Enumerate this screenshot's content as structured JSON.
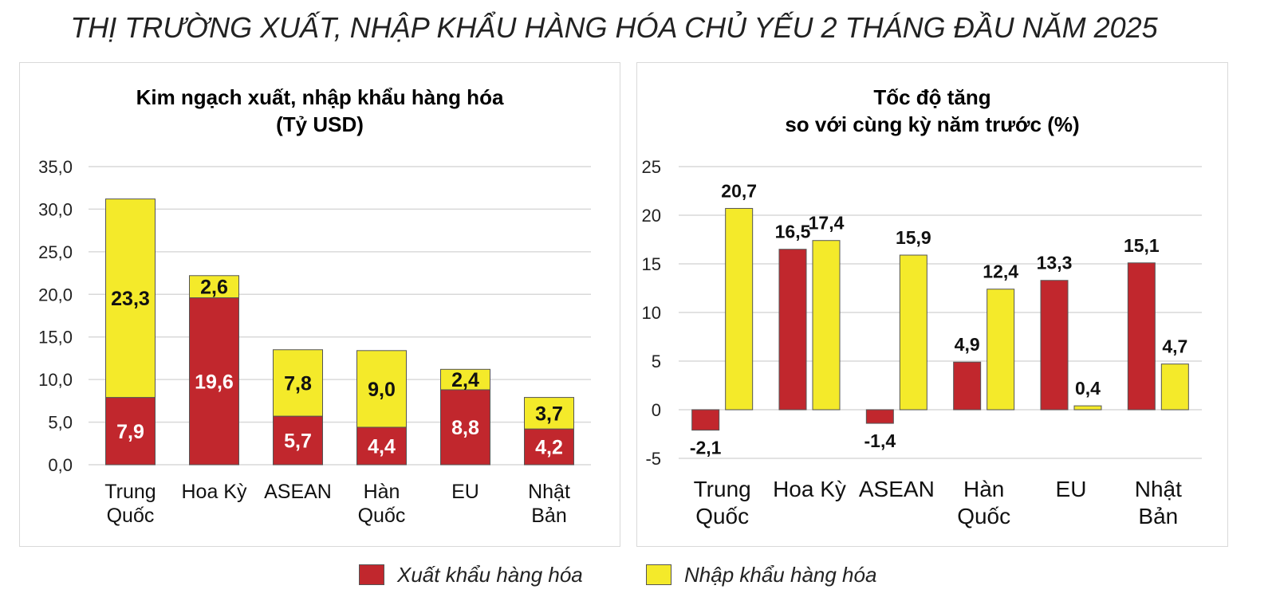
{
  "title": "THỊ TRƯỜNG XUẤT, NHẬP KHẨU HÀNG HÓA CHỦ YẾU 2 THÁNG ĐẦU NĂM 2025",
  "colors": {
    "export": "#c1272d",
    "import": "#f4ea2a",
    "grid": "#d9d9d9",
    "bar_outline": "#555555"
  },
  "legend": {
    "export_label": "Xuất khẩu hàng hóa",
    "import_label": "Nhập khẩu hàng hóa"
  },
  "left_title": [
    "Kim ngạch xuất, nhập khẩu hàng hóa",
    "(Tỷ USD)"
  ],
  "right_title": [
    "Tốc độ tăng",
    "so với cùng kỳ năm trước (%)"
  ],
  "chart_data": [
    {
      "type": "bar",
      "stacked": true,
      "title": "Kim ngạch xuất, nhập khẩu hàng hóa (Tỷ USD)",
      "categories": [
        [
          "Trung",
          "Quốc"
        ],
        [
          "Hoa Kỳ"
        ],
        [
          "ASEAN"
        ],
        [
          "Hàn",
          "Quốc"
        ],
        [
          "EU"
        ],
        [
          "Nhật",
          "Bản"
        ]
      ],
      "series": [
        {
          "name": "Xuất khẩu hàng hóa",
          "values": [
            7.9,
            19.6,
            5.7,
            4.4,
            8.8,
            4.2
          ],
          "labels": [
            "7,9",
            "19,6",
            "5,7",
            "4,4",
            "8,8",
            "4,2"
          ]
        },
        {
          "name": "Nhập khẩu hàng hóa",
          "values": [
            23.3,
            2.6,
            7.8,
            9.0,
            2.4,
            3.7
          ],
          "labels": [
            "23,3",
            "2,6",
            "7,8",
            "9,0",
            "2,4",
            "3,7"
          ]
        }
      ],
      "ylim": [
        0,
        35
      ],
      "yticks": [
        0,
        5,
        10,
        15,
        20,
        25,
        30,
        35
      ],
      "ytick_labels": [
        "0,0",
        "5,0",
        "10,0",
        "15,0",
        "20,0",
        "25,0",
        "30,0",
        "35,0"
      ],
      "grid": true
    },
    {
      "type": "bar",
      "stacked": false,
      "title": "Tốc độ tăng so với cùng kỳ năm trước (%)",
      "categories": [
        [
          "Trung",
          "Quốc"
        ],
        [
          "Hoa Kỳ"
        ],
        [
          "ASEAN"
        ],
        [
          "Hàn",
          "Quốc"
        ],
        [
          "EU"
        ],
        [
          "Nhật",
          "Bản"
        ]
      ],
      "series": [
        {
          "name": "Xuất khẩu hàng hóa",
          "values": [
            -2.1,
            16.5,
            -1.4,
            4.9,
            13.3,
            15.1
          ],
          "labels": [
            "-2,1",
            "16,5",
            "-1,4",
            "4,9",
            "13,3",
            "15,1"
          ]
        },
        {
          "name": "Nhập khẩu hàng hóa",
          "values": [
            20.7,
            17.4,
            15.9,
            12.4,
            0.4,
            4.7
          ],
          "labels": [
            "20,7",
            "17,4",
            "15,9",
            "12,4",
            "0,4",
            "4,7"
          ]
        }
      ],
      "ylim": [
        -5,
        25
      ],
      "yticks": [
        -5,
        0,
        5,
        10,
        15,
        20,
        25
      ],
      "ytick_labels": [
        "-5",
        "0",
        "5",
        "10",
        "15",
        "20",
        "25"
      ],
      "grid": true
    }
  ]
}
